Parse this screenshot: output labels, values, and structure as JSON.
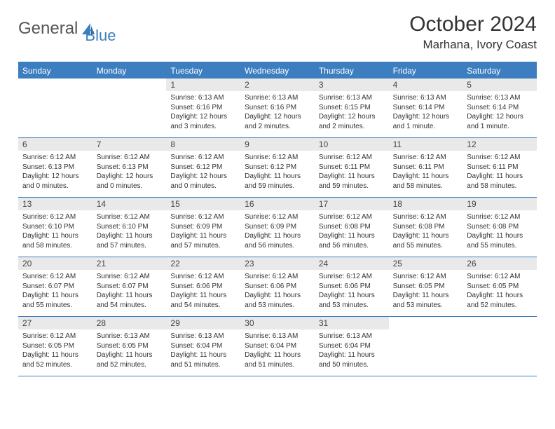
{
  "logo": {
    "text1": "General",
    "text2": "Blue"
  },
  "title": "October 2024",
  "location": "Marhana, Ivory Coast",
  "colors": {
    "accent": "#3c7ebf",
    "daynum_bg": "#e9e9e9",
    "text": "#333333",
    "bg": "#ffffff"
  },
  "typography": {
    "title_fontsize": 30,
    "location_fontsize": 17,
    "weekday_fontsize": 12,
    "daynum_fontsize": 12,
    "body_fontsize": 10
  },
  "weekdays": [
    "Sunday",
    "Monday",
    "Tuesday",
    "Wednesday",
    "Thursday",
    "Friday",
    "Saturday"
  ],
  "weeks": [
    [
      null,
      null,
      {
        "n": "1",
        "sunrise": "6:13 AM",
        "sunset": "6:16 PM",
        "daylight": "12 hours and 3 minutes."
      },
      {
        "n": "2",
        "sunrise": "6:13 AM",
        "sunset": "6:16 PM",
        "daylight": "12 hours and 2 minutes."
      },
      {
        "n": "3",
        "sunrise": "6:13 AM",
        "sunset": "6:15 PM",
        "daylight": "12 hours and 2 minutes."
      },
      {
        "n": "4",
        "sunrise": "6:13 AM",
        "sunset": "6:14 PM",
        "daylight": "12 hours and 1 minute."
      },
      {
        "n": "5",
        "sunrise": "6:13 AM",
        "sunset": "6:14 PM",
        "daylight": "12 hours and 1 minute."
      }
    ],
    [
      {
        "n": "6",
        "sunrise": "6:12 AM",
        "sunset": "6:13 PM",
        "daylight": "12 hours and 0 minutes."
      },
      {
        "n": "7",
        "sunrise": "6:12 AM",
        "sunset": "6:13 PM",
        "daylight": "12 hours and 0 minutes."
      },
      {
        "n": "8",
        "sunrise": "6:12 AM",
        "sunset": "6:12 PM",
        "daylight": "12 hours and 0 minutes."
      },
      {
        "n": "9",
        "sunrise": "6:12 AM",
        "sunset": "6:12 PM",
        "daylight": "11 hours and 59 minutes."
      },
      {
        "n": "10",
        "sunrise": "6:12 AM",
        "sunset": "6:11 PM",
        "daylight": "11 hours and 59 minutes."
      },
      {
        "n": "11",
        "sunrise": "6:12 AM",
        "sunset": "6:11 PM",
        "daylight": "11 hours and 58 minutes."
      },
      {
        "n": "12",
        "sunrise": "6:12 AM",
        "sunset": "6:11 PM",
        "daylight": "11 hours and 58 minutes."
      }
    ],
    [
      {
        "n": "13",
        "sunrise": "6:12 AM",
        "sunset": "6:10 PM",
        "daylight": "11 hours and 58 minutes."
      },
      {
        "n": "14",
        "sunrise": "6:12 AM",
        "sunset": "6:10 PM",
        "daylight": "11 hours and 57 minutes."
      },
      {
        "n": "15",
        "sunrise": "6:12 AM",
        "sunset": "6:09 PM",
        "daylight": "11 hours and 57 minutes."
      },
      {
        "n": "16",
        "sunrise": "6:12 AM",
        "sunset": "6:09 PM",
        "daylight": "11 hours and 56 minutes."
      },
      {
        "n": "17",
        "sunrise": "6:12 AM",
        "sunset": "6:08 PM",
        "daylight": "11 hours and 56 minutes."
      },
      {
        "n": "18",
        "sunrise": "6:12 AM",
        "sunset": "6:08 PM",
        "daylight": "11 hours and 55 minutes."
      },
      {
        "n": "19",
        "sunrise": "6:12 AM",
        "sunset": "6:08 PM",
        "daylight": "11 hours and 55 minutes."
      }
    ],
    [
      {
        "n": "20",
        "sunrise": "6:12 AM",
        "sunset": "6:07 PM",
        "daylight": "11 hours and 55 minutes."
      },
      {
        "n": "21",
        "sunrise": "6:12 AM",
        "sunset": "6:07 PM",
        "daylight": "11 hours and 54 minutes."
      },
      {
        "n": "22",
        "sunrise": "6:12 AM",
        "sunset": "6:06 PM",
        "daylight": "11 hours and 54 minutes."
      },
      {
        "n": "23",
        "sunrise": "6:12 AM",
        "sunset": "6:06 PM",
        "daylight": "11 hours and 53 minutes."
      },
      {
        "n": "24",
        "sunrise": "6:12 AM",
        "sunset": "6:06 PM",
        "daylight": "11 hours and 53 minutes."
      },
      {
        "n": "25",
        "sunrise": "6:12 AM",
        "sunset": "6:05 PM",
        "daylight": "11 hours and 53 minutes."
      },
      {
        "n": "26",
        "sunrise": "6:12 AM",
        "sunset": "6:05 PM",
        "daylight": "11 hours and 52 minutes."
      }
    ],
    [
      {
        "n": "27",
        "sunrise": "6:12 AM",
        "sunset": "6:05 PM",
        "daylight": "11 hours and 52 minutes."
      },
      {
        "n": "28",
        "sunrise": "6:13 AM",
        "sunset": "6:05 PM",
        "daylight": "11 hours and 52 minutes."
      },
      {
        "n": "29",
        "sunrise": "6:13 AM",
        "sunset": "6:04 PM",
        "daylight": "11 hours and 51 minutes."
      },
      {
        "n": "30",
        "sunrise": "6:13 AM",
        "sunset": "6:04 PM",
        "daylight": "11 hours and 51 minutes."
      },
      {
        "n": "31",
        "sunrise": "6:13 AM",
        "sunset": "6:04 PM",
        "daylight": "11 hours and 50 minutes."
      },
      null,
      null
    ]
  ],
  "labels": {
    "sunrise": "Sunrise:",
    "sunset": "Sunset:",
    "daylight": "Daylight:"
  }
}
